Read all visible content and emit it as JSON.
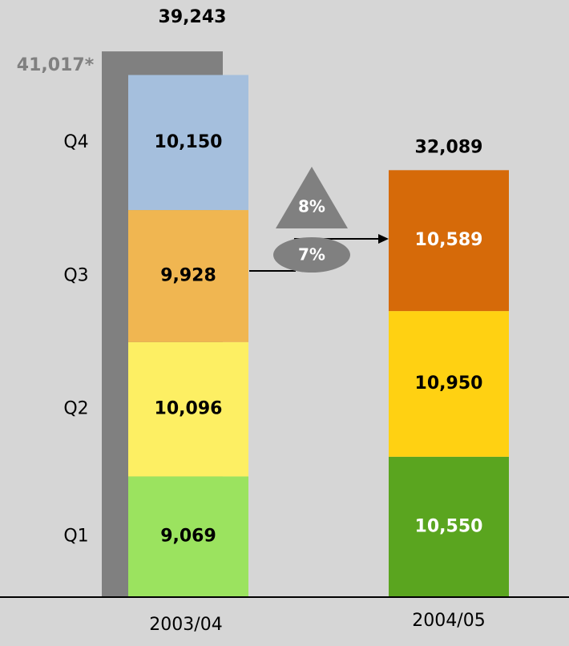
{
  "chart_data": {
    "type": "bar",
    "stacked": true,
    "categories": [
      "2003/04",
      "2004/05"
    ],
    "quarter_labels": [
      "Q1",
      "Q2",
      "Q3",
      "Q4"
    ],
    "series": [
      {
        "name": "Q1",
        "values": [
          9069,
          10550
        ],
        "colors": [
          "#9be35f",
          "#5aa51f"
        ],
        "label_colors": [
          "#000000",
          "#ffffff"
        ]
      },
      {
        "name": "Q2",
        "values": [
          10096,
          10950
        ],
        "colors": [
          "#fdef63",
          "#ffd112"
        ],
        "label_colors": [
          "#000000",
          "#000000"
        ]
      },
      {
        "name": "Q3",
        "values": [
          9928,
          10589
        ],
        "colors": [
          "#f0b651",
          "#d66a09"
        ],
        "label_colors": [
          "#000000",
          "#ffffff"
        ]
      },
      {
        "name": "Q4",
        "values": [
          10150,
          null
        ],
        "colors": [
          "#a5bfdd",
          null
        ],
        "label_colors": [
          "#000000",
          null
        ]
      }
    ],
    "value_labels": [
      [
        "9,069",
        "10,096",
        "9,928",
        "10,150"
      ],
      [
        "10,550",
        "10,950",
        "10,589",
        null
      ]
    ],
    "totals": [
      39243,
      32089
    ],
    "total_labels": [
      "39,243",
      "32,089"
    ],
    "reference_bar": {
      "value": 41017,
      "label": "41,017*",
      "color": "#808080",
      "label_color": "#808080"
    },
    "annotations": [
      {
        "shape": "triangle",
        "text": "8%",
        "color": "#808080"
      },
      {
        "shape": "ellipse",
        "text": "7%",
        "color": "#808080"
      }
    ],
    "ylim": [
      0,
      44000
    ],
    "grid": false,
    "legend": "none",
    "title": "",
    "xlabel": "",
    "ylabel": ""
  }
}
